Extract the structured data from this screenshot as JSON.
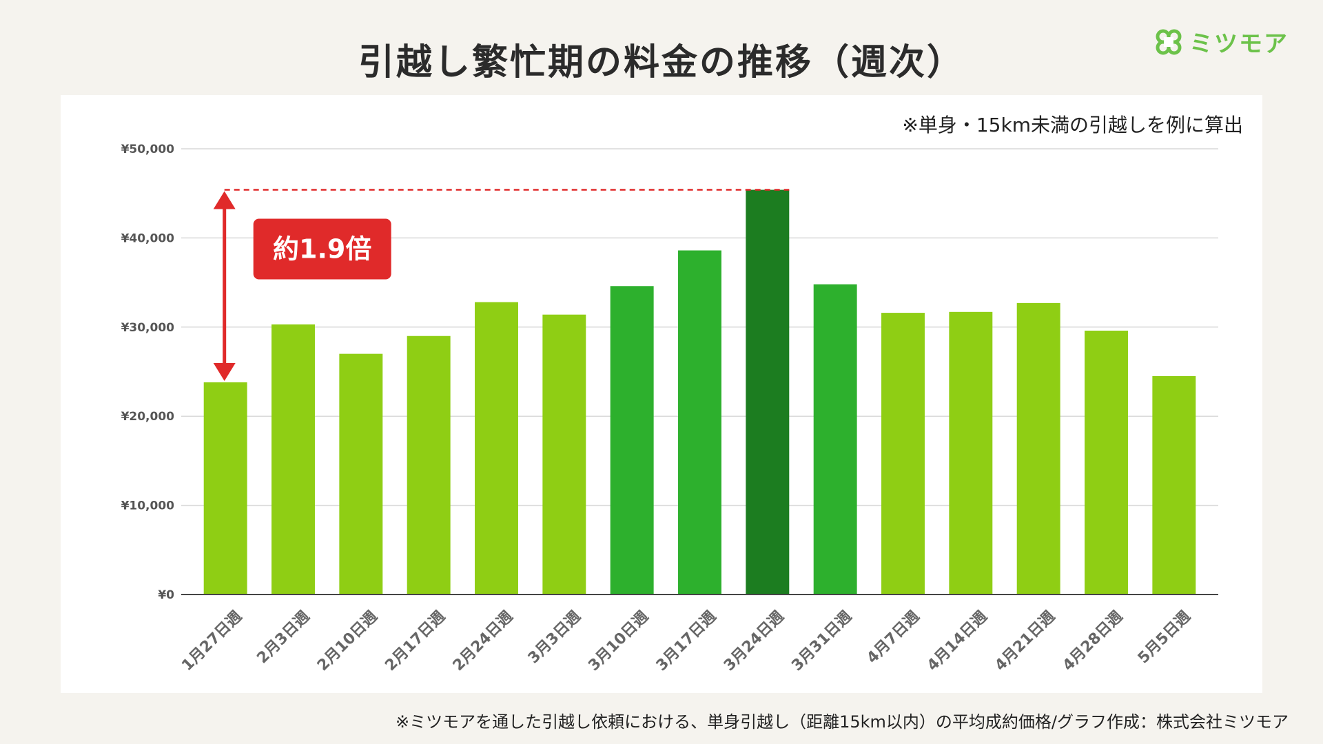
{
  "title": "引越し繁忙期の料金の推移（週次）",
  "brand": {
    "name": "ミツモア",
    "logo_icon": "clover-logo-icon",
    "color": "#6cc24a"
  },
  "chart_note": "※単身・15km未満の引越しを例に算出",
  "footer_note": "※ミツモアを通した引越し依頼における、単身引越し（距離15km以内）の平均成約価格/グラフ作成：株式会社ミツモア",
  "chart_data": {
    "type": "bar",
    "title": "",
    "xlabel": "",
    "ylabel": "",
    "ylim": [
      0,
      50000
    ],
    "y_ticks": [
      0,
      10000,
      20000,
      30000,
      40000,
      50000
    ],
    "y_tick_labels": [
      "¥0",
      "¥10,000",
      "¥20,000",
      "¥30,000",
      "¥40,000",
      "¥50,000"
    ],
    "grid": true,
    "categories": [
      "1月27日週",
      "2月3日週",
      "2月10日週",
      "2月17日週",
      "2月24日週",
      "3月3日週",
      "3月10日週",
      "3月17日週",
      "3月24日週",
      "3月31日週",
      "4月7日週",
      "4月14日週",
      "4月21日週",
      "4月28日週",
      "5月5日週"
    ],
    "values": [
      23800,
      30300,
      27000,
      29000,
      32800,
      31400,
      34600,
      38600,
      45400,
      34800,
      31600,
      31700,
      32700,
      29600,
      24500
    ],
    "bar_colors": [
      "#8fce14",
      "#8fce14",
      "#8fce14",
      "#8fce14",
      "#8fce14",
      "#8fce14",
      "#2db02d",
      "#2db02d",
      "#1c7d20",
      "#2db02d",
      "#8fce14",
      "#8fce14",
      "#8fce14",
      "#8fce14",
      "#8fce14"
    ],
    "annotation": {
      "label": "約1.9倍",
      "from_value": 23800,
      "to_value": 45400,
      "color": "#e02a2a"
    }
  }
}
